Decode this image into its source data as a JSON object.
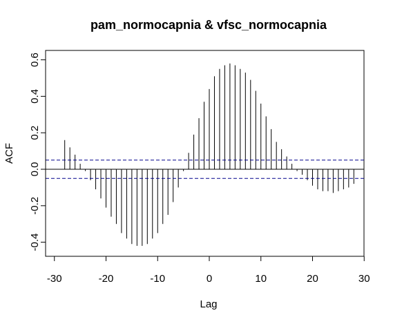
{
  "chart_data": {
    "type": "bar",
    "title": "pam_normocapnia & vfsc_normocapnia",
    "xlabel": "Lag",
    "ylabel": "ACF",
    "xlim": [
      -30,
      30
    ],
    "ylim": [
      -0.45,
      0.6
    ],
    "xticks": [
      -30,
      -20,
      -10,
      0,
      10,
      20,
      30
    ],
    "yticks": [
      -0.4,
      -0.2,
      0.0,
      0.2,
      0.4,
      0.6
    ],
    "tick_labels_x": [
      "-30",
      "-20",
      "-10",
      "0",
      "10",
      "20",
      "30"
    ],
    "tick_labels_y": [
      "-0.4",
      "-0.2",
      "0.0",
      "0.2",
      "0.4",
      "0.6"
    ],
    "confidence_band": 0.05,
    "lags": [
      -28,
      -27,
      -26,
      -25,
      -24,
      -23,
      -22,
      -21,
      -20,
      -19,
      -18,
      -17,
      -16,
      -15,
      -14,
      -13,
      -12,
      -11,
      -10,
      -9,
      -8,
      -7,
      -6,
      -5,
      -4,
      -3,
      -2,
      -1,
      0,
      1,
      2,
      3,
      4,
      5,
      6,
      7,
      8,
      9,
      10,
      11,
      12,
      13,
      14,
      15,
      16,
      17,
      18,
      19,
      20,
      21,
      22,
      23,
      24,
      25,
      26,
      27,
      28
    ],
    "values": [
      0.16,
      0.12,
      0.08,
      0.03,
      -0.01,
      -0.06,
      -0.11,
      -0.16,
      -0.21,
      -0.26,
      -0.3,
      -0.35,
      -0.38,
      -0.41,
      -0.42,
      -0.42,
      -0.41,
      -0.38,
      -0.35,
      -0.3,
      -0.25,
      -0.18,
      -0.1,
      -0.01,
      0.09,
      0.19,
      0.28,
      0.37,
      0.44,
      0.51,
      0.55,
      0.57,
      0.58,
      0.57,
      0.55,
      0.53,
      0.49,
      0.43,
      0.36,
      0.29,
      0.22,
      0.15,
      0.11,
      0.07,
      0.03,
      -0.01,
      -0.03,
      -0.06,
      -0.09,
      -0.11,
      -0.12,
      -0.12,
      -0.13,
      -0.12,
      -0.11,
      -0.1,
      -0.08
    ],
    "colors": {
      "bars": "#000000",
      "band": "#00008b",
      "zero": "#000000",
      "frame": "#000000"
    }
  }
}
